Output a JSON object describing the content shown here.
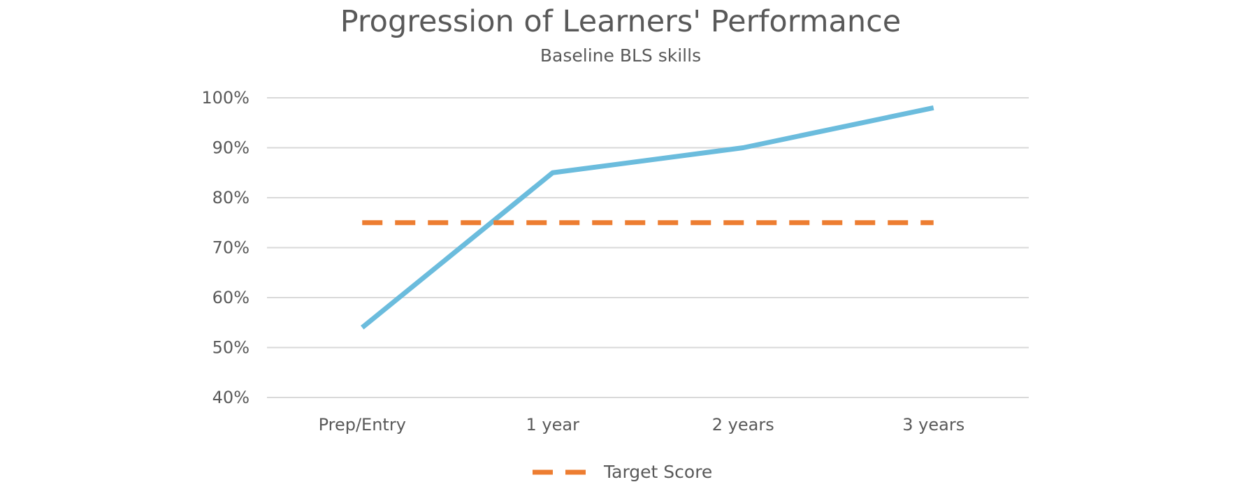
{
  "chart_data": {
    "type": "line",
    "title": "Progression of Learners' Performance",
    "subtitle": "Baseline BLS skills",
    "xlabel": "",
    "ylabel": "",
    "categories": [
      "Prep/Entry",
      "1 year",
      "2 years",
      "3 years"
    ],
    "ylim": [
      40,
      100
    ],
    "y_ticks": [
      "40%",
      "50%",
      "60%",
      "70%",
      "80%",
      "90%",
      "100%"
    ],
    "grid": true,
    "legend_position": "bottom",
    "series": [
      {
        "values": [
          54,
          85,
          90,
          98
        ],
        "color": "#6bbcdd",
        "style": "solid",
        "in_legend": false
      },
      {
        "name": "Target Score",
        "values": [
          75,
          75,
          75,
          75
        ],
        "color": "#ed7d31",
        "style": "dashed",
        "in_legend": true
      }
    ]
  }
}
